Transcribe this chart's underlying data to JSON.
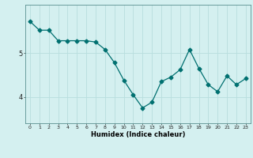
{
  "x": [
    0,
    1,
    2,
    3,
    4,
    5,
    6,
    7,
    8,
    9,
    10,
    11,
    12,
    13,
    14,
    15,
    16,
    17,
    18,
    19,
    20,
    21,
    22,
    23
  ],
  "y": [
    5.72,
    5.52,
    5.52,
    5.28,
    5.28,
    5.28,
    5.28,
    5.25,
    5.08,
    4.78,
    4.38,
    4.05,
    3.75,
    3.88,
    4.35,
    4.45,
    4.62,
    5.08,
    4.65,
    4.28,
    4.12,
    4.48,
    4.28,
    4.42
  ],
  "line_color": "#007070",
  "marker": "D",
  "marker_size": 2.5,
  "bg_color": "#d4f0f0",
  "grid_color": "#b8dede",
  "xlabel": "Humidex (Indice chaleur)",
  "xlim": [
    -0.5,
    23.5
  ],
  "ylim": [
    3.4,
    6.1
  ],
  "yticks": [
    4,
    5
  ],
  "xticks": [
    0,
    1,
    2,
    3,
    4,
    5,
    6,
    7,
    8,
    9,
    10,
    11,
    12,
    13,
    14,
    15,
    16,
    17,
    18,
    19,
    20,
    21,
    22,
    23
  ],
  "figsize": [
    3.2,
    2.0
  ],
  "dpi": 100
}
